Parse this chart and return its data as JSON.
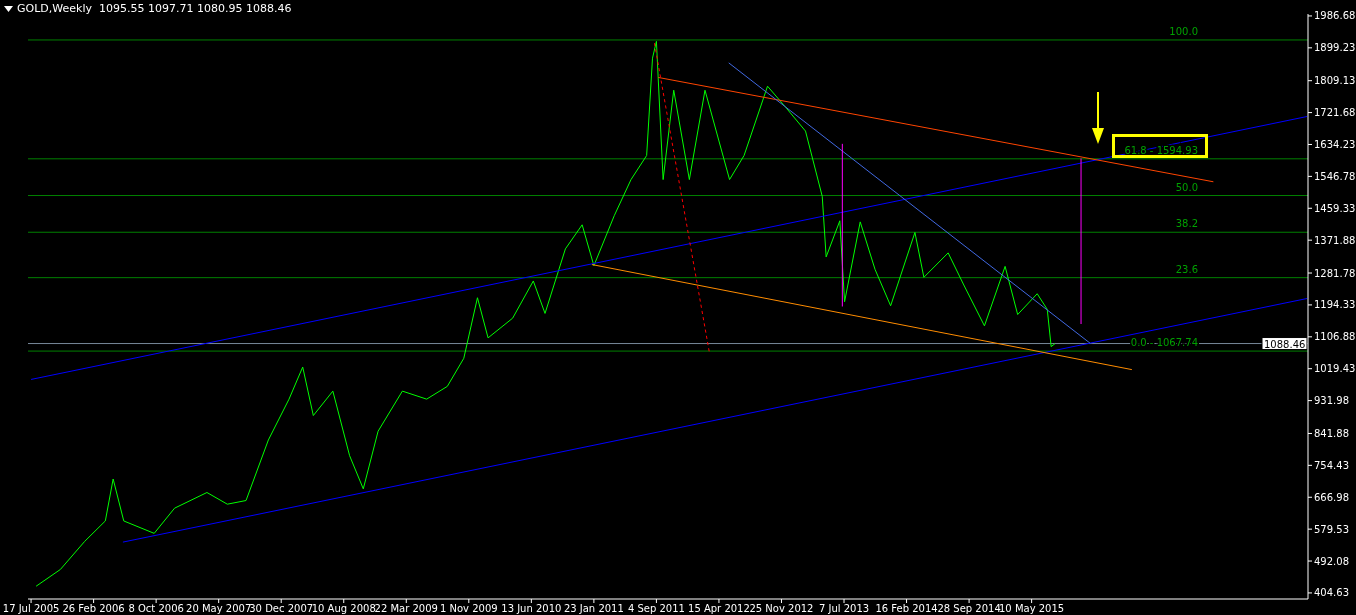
{
  "chart_data": {
    "type": "line",
    "title": "GOLD,Weekly  1095.55 1097.71 1080.95 1088.46",
    "xlim": [
      "2005-07-06",
      "2018-01-24"
    ],
    "ylim": [
      388,
      1992
    ],
    "xticks": [
      {
        "value": "2005-07-17",
        "label": "17 Jul 2005"
      },
      {
        "value": "2006-02-26",
        "label": "26 Feb 2006"
      },
      {
        "value": "2006-10-08",
        "label": "8 Oct 2006"
      },
      {
        "value": "2007-05-20",
        "label": "20 May 2007"
      },
      {
        "value": "2007-12-30",
        "label": "30 Dec 2007"
      },
      {
        "value": "2008-08-10",
        "label": "10 Aug 2008"
      },
      {
        "value": "2009-03-22",
        "label": "22 Mar 2009"
      },
      {
        "value": "2009-11-01",
        "label": "1 Nov 2009"
      },
      {
        "value": "2010-06-13",
        "label": "13 Jun 2010"
      },
      {
        "value": "2011-01-23",
        "label": "23 Jan 2011"
      },
      {
        "value": "2011-09-04",
        "label": "4 Sep 2011"
      },
      {
        "value": "2012-04-15",
        "label": "15 Apr 2012"
      },
      {
        "value": "2012-11-25",
        "label": "25 Nov 2012"
      },
      {
        "value": "2013-07-07",
        "label": "7 Jul 2013"
      },
      {
        "value": "2014-02-16",
        "label": "16 Feb 2014"
      },
      {
        "value": "2014-09-28",
        "label": "28 Sep 2014"
      },
      {
        "value": "2015-05-10",
        "label": "10 May 2015"
      }
    ],
    "yticks": [
      1986.68,
      1899.23,
      1809.13,
      1721.68,
      1634.23,
      1546.78,
      1459.33,
      1371.88,
      1281.78,
      1194.33,
      1106.88,
      1019.43,
      931.98,
      841.88,
      754.43,
      666.98,
      579.53,
      492.08,
      404.63
    ],
    "grid": false,
    "marker": "none",
    "annotations": [
      {
        "text": "100.0",
        "y": 1920.8
      },
      {
        "text": "61.8 - 1594.93",
        "y": 1594.93
      },
      {
        "text": "50.0",
        "y": 1494.27
      },
      {
        "text": "38.2",
        "y": 1393.6
      },
      {
        "text": "23.6",
        "y": 1269.07
      },
      {
        "text": "0.0 - 1067.74",
        "y": 1067.74
      }
    ],
    "ref_lines": [
      {
        "axis": "y",
        "value": 1920.8,
        "color": "#008000"
      },
      {
        "axis": "y",
        "value": 1594.93,
        "color": "#008000"
      },
      {
        "axis": "y",
        "value": 1494.27,
        "color": "#008000"
      },
      {
        "axis": "y",
        "value": 1393.6,
        "color": "#008000"
      },
      {
        "axis": "y",
        "value": 1269.07,
        "color": "#008000"
      },
      {
        "axis": "y",
        "value": 1067.74,
        "color": "#008000"
      },
      {
        "axis": "y",
        "value": 1088.46,
        "label": "1088.46",
        "color": "#778899"
      }
    ],
    "series": [
      {
        "type": "line",
        "color": "#00ff00",
        "line_style": "solid",
        "x": [
          "2005-08-04",
          "2005-10-30",
          "2006-01-25",
          "2006-04-09",
          "2006-05-07",
          "2006-06-14",
          "2006-10-01",
          "2006-12-13",
          "2007-04-08",
          "2007-06-20",
          "2007-08-26",
          "2007-11-14",
          "2008-01-27",
          "2008-03-16",
          "2008-04-23",
          "2008-07-02",
          "2008-08-31",
          "2008-10-19",
          "2008-12-11",
          "2009-03-08",
          "2009-06-03",
          "2009-08-16",
          "2009-10-14",
          "2009-12-02",
          "2010-01-09",
          "2010-04-07",
          "2010-06-20",
          "2010-08-01",
          "2010-10-13",
          "2010-12-12",
          "2011-01-23",
          "2011-04-06",
          "2011-06-05",
          "2011-07-31",
          "2011-08-21",
          "2011-09-04",
          "2011-09-28",
          "2011-11-05",
          "2011-12-31",
          "2012-02-25",
          "2012-05-23",
          "2012-07-14",
          "2012-10-06",
          "2012-12-08",
          "2013-02-19",
          "2013-04-20",
          "2013-05-04",
          "2013-06-22",
          "2013-07-09",
          "2013-09-03",
          "2013-10-26",
          "2013-12-21",
          "2014-03-18",
          "2014-04-19",
          "2014-07-15",
          "2014-09-09",
          "2014-11-22",
          "2015-02-04",
          "2015-03-21",
          "2015-05-30",
          "2015-07-05",
          "2015-07-19",
          "2015-08-02"
        ],
        "values": [
          423,
          469,
          546,
          602,
          717,
          602,
          568,
          637,
          680,
          648,
          658,
          824,
          936,
          1024,
          891,
          958,
          781,
          690,
          848,
          958,
          936,
          971,
          1048,
          1214,
          1104,
          1158,
          1260,
          1171,
          1348,
          1414,
          1302,
          1439,
          1538,
          1604,
          1871,
          1917,
          1538,
          1783,
          1538,
          1783,
          1538,
          1604,
          1794,
          1738,
          1671,
          1492,
          1326,
          1425,
          1203,
          1422,
          1292,
          1192,
          1393,
          1270,
          1337,
          1249,
          1137,
          1300,
          1168,
          1225,
          1182,
          1080,
          1088.46
        ]
      },
      {
        "type": "line",
        "color": "#0000ff",
        "line_style": "solid",
        "x": [
          "2005-07-17",
          "2018-01-21"
        ],
        "values": [
          990,
          1711
        ]
      },
      {
        "type": "line",
        "color": "#0000ff",
        "line_style": "solid",
        "x": [
          "2006-06-11",
          "2018-01-21"
        ],
        "values": [
          544,
          1212
        ]
      },
      {
        "type": "line",
        "color": "#ff8c00",
        "line_style": "solid",
        "x": [
          "2011-01-16",
          "2016-05-03"
        ],
        "values": [
          1305,
          1017
        ]
      },
      {
        "type": "line",
        "color": "#ff4500",
        "line_style": "solid",
        "x": [
          "2011-09-11",
          "2017-02-19"
        ],
        "values": [
          1818,
          1532
        ]
      },
      {
        "type": "line",
        "color": "#4169e1",
        "line_style": "solid",
        "x": [
          "2012-05-20",
          "2015-12-06"
        ],
        "values": [
          1858,
          1089
        ]
      },
      {
        "type": "line",
        "color": "#ff0000",
        "line_style": "dotted",
        "x": [
          "2011-08-28",
          "2012-03-11"
        ],
        "values": [
          1912,
          1067
        ]
      },
      {
        "type": "line",
        "color": "#ff00ff",
        "line_style": "solid",
        "x": [
          "2013-07-01",
          "2013-07-01"
        ],
        "values": [
          1636,
          1190
        ]
      },
      {
        "type": "line",
        "color": "#ff00ff",
        "line_style": "solid",
        "x": [
          "2015-11-03",
          "2015-11-03"
        ],
        "values": [
          1596,
          1142
        ]
      }
    ]
  }
}
